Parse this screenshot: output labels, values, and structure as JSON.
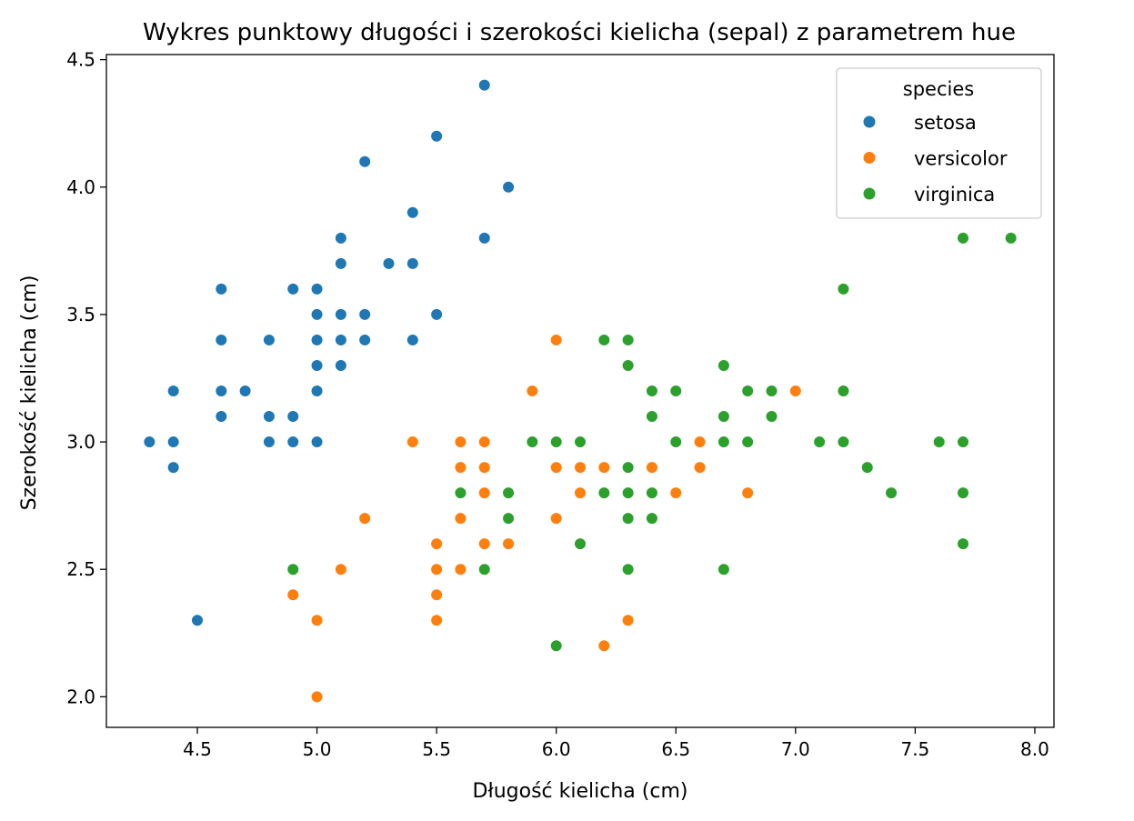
{
  "chart_data": {
    "type": "scatter",
    "title": "Wykres punktowy długości i szerokości kielicha (sepal) z parametrem hue",
    "xlabel": "Długość kielicha (cm)",
    "ylabel": "Szerokość kielicha (cm)",
    "xlim": [
      4.12,
      8.08
    ],
    "ylim": [
      1.88,
      4.52
    ],
    "xticks": [
      "4.5",
      "5.0",
      "5.5",
      "6.0",
      "6.5",
      "7.0",
      "7.5",
      "8.0"
    ],
    "yticks": [
      "2.0",
      "2.5",
      "3.0",
      "3.5",
      "4.0",
      "4.5"
    ],
    "xtick_values": [
      4.5,
      5.0,
      5.5,
      6.0,
      6.5,
      7.0,
      7.5,
      8.0
    ],
    "ytick_values": [
      2.0,
      2.5,
      3.0,
      3.5,
      4.0,
      4.5
    ],
    "grid": false,
    "legend": {
      "title": "species",
      "position": "top-right"
    },
    "series": [
      {
        "name": "setosa",
        "color": "#1f77b4",
        "points": [
          [
            5.7,
            4.4
          ],
          [
            5.5,
            4.2
          ],
          [
            5.2,
            4.1
          ],
          [
            5.8,
            4.0
          ],
          [
            5.4,
            3.9
          ],
          [
            5.1,
            3.8
          ],
          [
            5.7,
            3.8
          ],
          [
            5.1,
            3.7
          ],
          [
            5.3,
            3.7
          ],
          [
            5.4,
            3.7
          ],
          [
            4.6,
            3.6
          ],
          [
            4.9,
            3.6
          ],
          [
            5.0,
            3.6
          ],
          [
            5.0,
            3.5
          ],
          [
            5.1,
            3.5
          ],
          [
            5.2,
            3.5
          ],
          [
            5.5,
            3.5
          ],
          [
            4.6,
            3.4
          ],
          [
            4.8,
            3.4
          ],
          [
            5.0,
            3.4
          ],
          [
            5.1,
            3.4
          ],
          [
            5.2,
            3.4
          ],
          [
            5.4,
            3.4
          ],
          [
            5.0,
            3.3
          ],
          [
            5.1,
            3.3
          ],
          [
            4.4,
            3.2
          ],
          [
            4.6,
            3.2
          ],
          [
            4.7,
            3.2
          ],
          [
            5.0,
            3.2
          ],
          [
            4.6,
            3.1
          ],
          [
            4.8,
            3.1
          ],
          [
            4.9,
            3.1
          ],
          [
            4.3,
            3.0
          ],
          [
            4.4,
            3.0
          ],
          [
            4.8,
            3.0
          ],
          [
            4.9,
            3.0
          ],
          [
            5.0,
            3.0
          ],
          [
            4.4,
            2.9
          ],
          [
            4.5,
            2.3
          ]
        ]
      },
      {
        "name": "versicolor",
        "color": "#ff7f0e",
        "points": [
          [
            6.0,
            3.4
          ],
          [
            5.9,
            3.2
          ],
          [
            7.0,
            3.2
          ],
          [
            5.4,
            3.0
          ],
          [
            5.6,
            3.0
          ],
          [
            5.7,
            3.0
          ],
          [
            6.6,
            3.0
          ],
          [
            5.6,
            2.9
          ],
          [
            5.7,
            2.9
          ],
          [
            6.0,
            2.9
          ],
          [
            6.1,
            2.9
          ],
          [
            6.2,
            2.9
          ],
          [
            6.4,
            2.9
          ],
          [
            6.6,
            2.9
          ],
          [
            5.7,
            2.8
          ],
          [
            6.1,
            2.8
          ],
          [
            6.5,
            2.8
          ],
          [
            6.8,
            2.8
          ],
          [
            5.2,
            2.7
          ],
          [
            5.6,
            2.7
          ],
          [
            6.0,
            2.7
          ],
          [
            5.5,
            2.6
          ],
          [
            5.7,
            2.6
          ],
          [
            5.8,
            2.6
          ],
          [
            5.1,
            2.5
          ],
          [
            5.5,
            2.5
          ],
          [
            5.6,
            2.5
          ],
          [
            4.9,
            2.4
          ],
          [
            5.5,
            2.4
          ],
          [
            5.0,
            2.3
          ],
          [
            5.5,
            2.3
          ],
          [
            6.3,
            2.3
          ],
          [
            6.2,
            2.2
          ],
          [
            5.0,
            2.0
          ]
        ]
      },
      {
        "name": "virginica",
        "color": "#2ca02c",
        "points": [
          [
            7.7,
            3.8
          ],
          [
            7.9,
            3.8
          ],
          [
            7.2,
            3.6
          ],
          [
            6.2,
            3.4
          ],
          [
            6.3,
            3.4
          ],
          [
            6.3,
            3.3
          ],
          [
            6.7,
            3.3
          ],
          [
            6.4,
            3.2
          ],
          [
            6.5,
            3.2
          ],
          [
            6.8,
            3.2
          ],
          [
            6.9,
            3.2
          ],
          [
            7.2,
            3.2
          ],
          [
            6.4,
            3.1
          ],
          [
            6.7,
            3.1
          ],
          [
            6.9,
            3.1
          ],
          [
            5.9,
            3.0
          ],
          [
            6.0,
            3.0
          ],
          [
            6.1,
            3.0
          ],
          [
            6.5,
            3.0
          ],
          [
            6.7,
            3.0
          ],
          [
            6.8,
            3.0
          ],
          [
            7.1,
            3.0
          ],
          [
            7.2,
            3.0
          ],
          [
            7.6,
            3.0
          ],
          [
            7.7,
            3.0
          ],
          [
            6.3,
            2.9
          ],
          [
            7.3,
            2.9
          ],
          [
            5.6,
            2.8
          ],
          [
            5.8,
            2.8
          ],
          [
            6.2,
            2.8
          ],
          [
            6.3,
            2.8
          ],
          [
            6.4,
            2.8
          ],
          [
            7.4,
            2.8
          ],
          [
            7.7,
            2.8
          ],
          [
            5.8,
            2.7
          ],
          [
            6.3,
            2.7
          ],
          [
            6.4,
            2.7
          ],
          [
            6.1,
            2.6
          ],
          [
            7.7,
            2.6
          ],
          [
            4.9,
            2.5
          ],
          [
            5.7,
            2.5
          ],
          [
            6.3,
            2.5
          ],
          [
            6.7,
            2.5
          ],
          [
            6.0,
            2.2
          ]
        ]
      }
    ]
  }
}
